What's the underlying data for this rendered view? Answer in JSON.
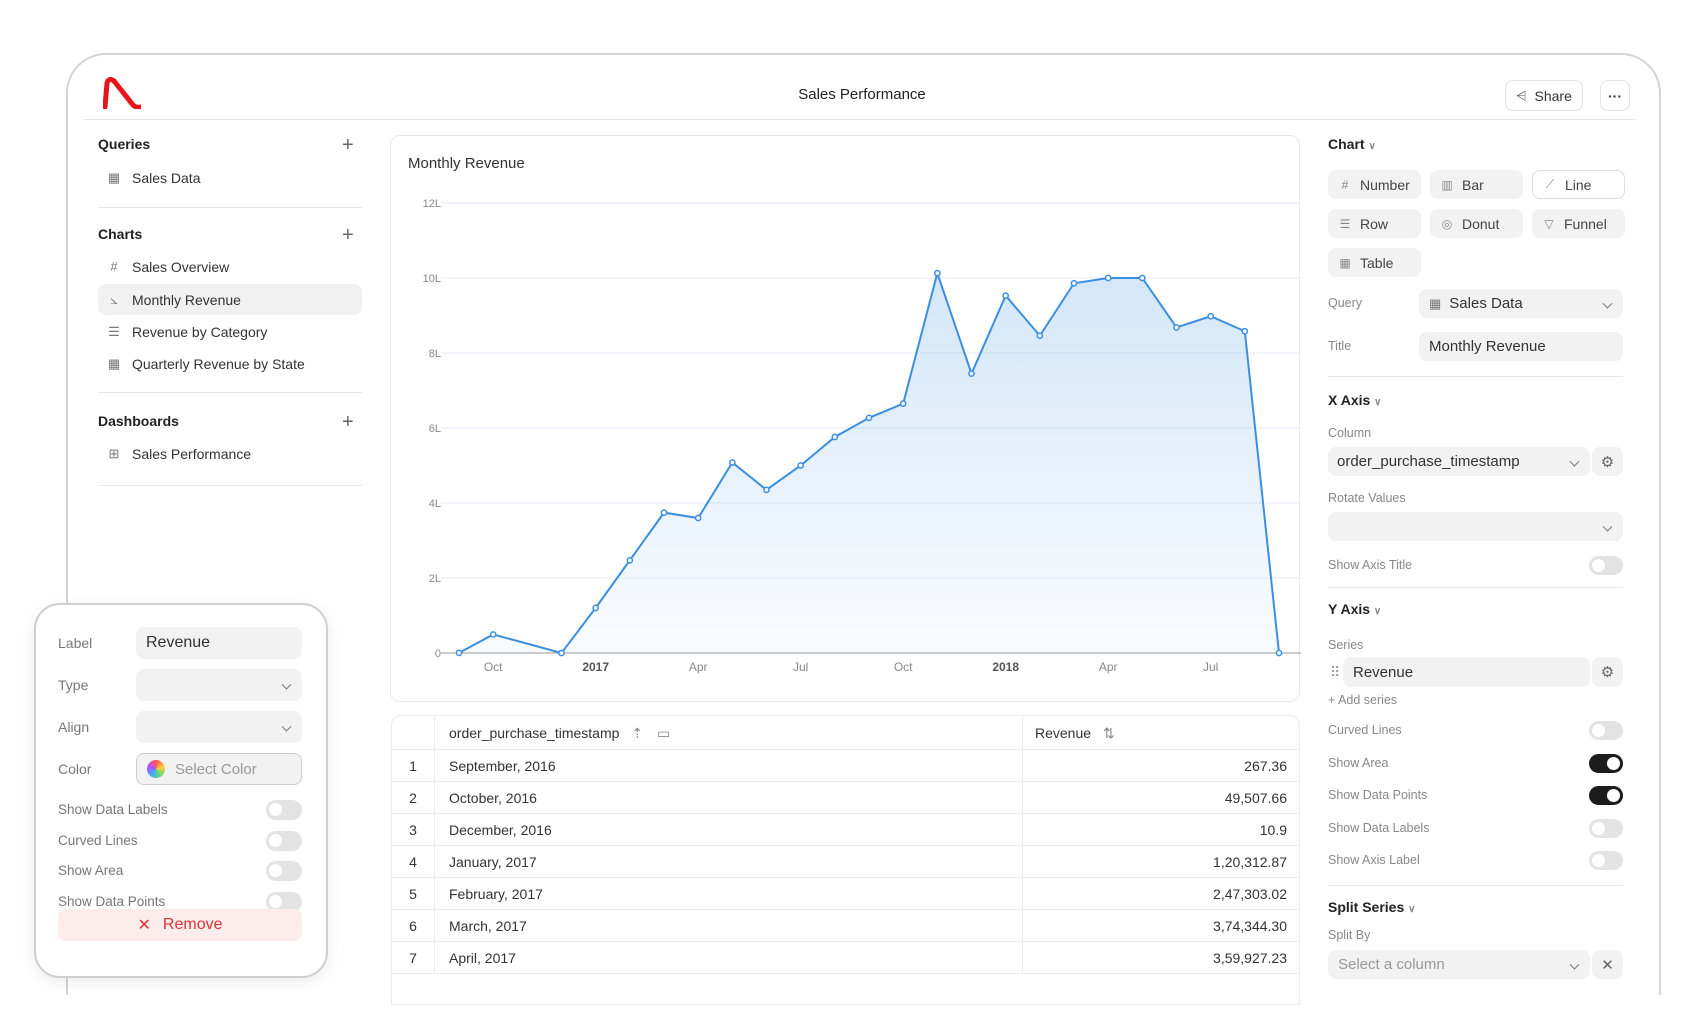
{
  "header": {
    "title": "Sales Performance",
    "share_label": "Share",
    "more_label": "···"
  },
  "brand_color": "#e8141b",
  "sidebar": {
    "queries": {
      "title": "Queries",
      "items": [
        {
          "label": "Sales Data",
          "icon": "table-icon"
        }
      ]
    },
    "charts": {
      "title": "Charts",
      "items": [
        {
          "label": "Sales Overview",
          "icon": "hash-icon"
        },
        {
          "label": "Monthly Revenue",
          "icon": "line-chart-icon",
          "selected": true
        },
        {
          "label": "Revenue by Category",
          "icon": "row-chart-icon"
        },
        {
          "label": "Quarterly Revenue by State",
          "icon": "table-icon"
        }
      ]
    },
    "dashboards": {
      "title": "Dashboards",
      "items": [
        {
          "label": "Sales Performance",
          "icon": "dashboard-icon"
        }
      ]
    }
  },
  "chart_data": {
    "type": "area",
    "title": "Monthly Revenue",
    "xlabel": "",
    "ylabel": "",
    "x": [
      "2016-09",
      "2016-10",
      "2016-12",
      "2017-01",
      "2017-02",
      "2017-03",
      "2017-04",
      "2017-05",
      "2017-06",
      "2017-07",
      "2017-08",
      "2017-09",
      "2017-10",
      "2017-11",
      "2017-12",
      "2018-01",
      "2018-02",
      "2018-03",
      "2018-04",
      "2018-05",
      "2018-06",
      "2018-07",
      "2018-08",
      "2018-09"
    ],
    "series": [
      {
        "name": "Revenue",
        "color": "#3b8fe0",
        "values": [
          267.36,
          49507.66,
          10.9,
          120312.87,
          247303.02,
          374344.3,
          359927.23,
          508000,
          435000,
          500000,
          576000,
          627000,
          665000,
          1013000,
          745000,
          953000,
          846000,
          986000,
          1000000,
          1000000,
          868000,
          898000,
          858000,
          0
        ]
      }
    ],
    "ylim": [
      0,
      1200000
    ],
    "yticks": [
      {
        "v": 0,
        "label": "0"
      },
      {
        "v": 200000,
        "label": "2L"
      },
      {
        "v": 400000,
        "label": "4L"
      },
      {
        "v": 600000,
        "label": "6L"
      },
      {
        "v": 800000,
        "label": "8L"
      },
      {
        "v": 1000000,
        "label": "10L"
      },
      {
        "v": 1200000,
        "label": "12L"
      }
    ],
    "xticks": [
      {
        "v": "2016-10",
        "label": "Oct",
        "bold": false
      },
      {
        "v": "2017-01",
        "label": "2017",
        "bold": true
      },
      {
        "v": "2017-04",
        "label": "Apr",
        "bold": false
      },
      {
        "v": "2017-07",
        "label": "Jul",
        "bold": false
      },
      {
        "v": "2017-10",
        "label": "Oct",
        "bold": false
      },
      {
        "v": "2018-01",
        "label": "2018",
        "bold": true
      },
      {
        "v": "2018-04",
        "label": "Apr",
        "bold": false
      },
      {
        "v": "2018-07",
        "label": "Jul",
        "bold": false
      }
    ],
    "grid": true,
    "show_area": true,
    "show_points": true
  },
  "table": {
    "columns": [
      "order_purchase_timestamp",
      "Revenue"
    ],
    "rows": [
      {
        "n": "1",
        "date": "September, 2016",
        "rev": "267.36"
      },
      {
        "n": "2",
        "date": "October, 2016",
        "rev": "49,507.66"
      },
      {
        "n": "3",
        "date": "December, 2016",
        "rev": "10.9"
      },
      {
        "n": "4",
        "date": "January, 2017",
        "rev": "1,20,312.87"
      },
      {
        "n": "5",
        "date": "February, 2017",
        "rev": "2,47,303.02"
      },
      {
        "n": "6",
        "date": "March, 2017",
        "rev": "3,74,344.30"
      },
      {
        "n": "7",
        "date": "April, 2017",
        "rev": "3,59,927.23"
      }
    ]
  },
  "right": {
    "chart_head": "Chart",
    "types": [
      {
        "label": "Number",
        "icon": "#"
      },
      {
        "label": "Bar",
        "icon": "▥"
      },
      {
        "label": "Line",
        "icon": "⟋",
        "selected": true
      },
      {
        "label": "Row",
        "icon": "☰"
      },
      {
        "label": "Donut",
        "icon": "◎"
      },
      {
        "label": "Funnel",
        "icon": "▽"
      },
      {
        "label": "Table",
        "icon": "▦"
      }
    ],
    "query_label": "Query",
    "query_value": "Sales Data",
    "title_label": "Title",
    "title_value": "Monthly Revenue",
    "xaxis_head": "X Axis",
    "column_label": "Column",
    "column_value": "order_purchase_timestamp",
    "rotate_label": "Rotate Values",
    "rotate_value": "",
    "show_axis_title": "Show Axis Title",
    "yaxis_head": "Y Axis",
    "series_label": "Series",
    "series_value": "Revenue",
    "add_series": "+ Add series",
    "toggles": [
      {
        "label": "Curved Lines",
        "on": false
      },
      {
        "label": "Show Area",
        "on": true
      },
      {
        "label": "Show Data Points",
        "on": true
      },
      {
        "label": "Show Data Labels",
        "on": false
      },
      {
        "label": "Show Axis Label",
        "on": false
      }
    ],
    "split_head": "Split Series",
    "split_label": "Split By",
    "split_placeholder": "Select a column"
  },
  "popover": {
    "label_label": "Label",
    "label_value": "Revenue",
    "type_label": "Type",
    "type_value": "",
    "align_label": "Align",
    "align_value": "",
    "color_label": "Color",
    "color_placeholder": "Select Color",
    "toggles": [
      {
        "label": "Show Data Labels",
        "on": false
      },
      {
        "label": "Curved Lines",
        "on": false
      },
      {
        "label": "Show Area",
        "on": false
      },
      {
        "label": "Show Data Points",
        "on": false
      }
    ],
    "remove_label": "Remove"
  }
}
